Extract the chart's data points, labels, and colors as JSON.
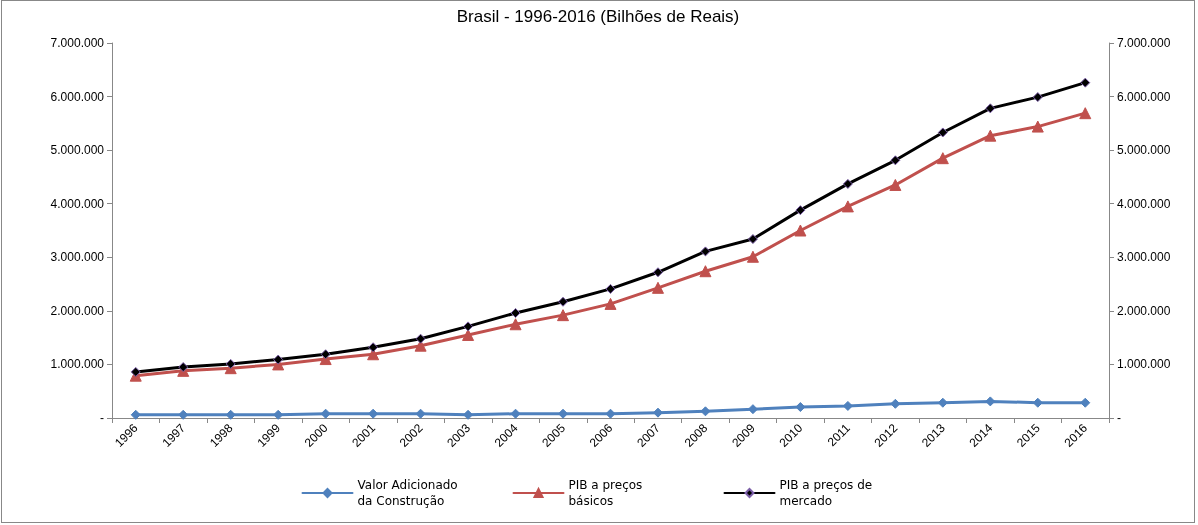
{
  "chart_data": {
    "type": "line",
    "title": "Brasil - 1996-2016 (Bilhões de Reais)",
    "categories": [
      "1996",
      "1997",
      "1998",
      "1999",
      "2000",
      "2001",
      "2002",
      "2003",
      "2004",
      "2005",
      "2006",
      "2007",
      "2008",
      "2009",
      "2010",
      "2011",
      "2012",
      "2013",
      "2014",
      "2015",
      "2016"
    ],
    "series": [
      {
        "name": "Valor Adicionado da Construção",
        "color": "#4f81bd",
        "marker": "diamond",
        "values": [
          60000,
          60000,
          60000,
          60000,
          80000,
          80000,
          80000,
          60000,
          80000,
          80000,
          80000,
          100000,
          125000,
          165000,
          205000,
          225000,
          265000,
          285000,
          310000,
          285000,
          285000
        ]
      },
      {
        "name": "PIB a preços básicos",
        "color": "#c0504d",
        "marker": "triangle",
        "values": [
          790000,
          880000,
          930000,
          1000000,
          1100000,
          1190000,
          1350000,
          1550000,
          1750000,
          1920000,
          2130000,
          2430000,
          2740000,
          3010000,
          3500000,
          3950000,
          4350000,
          4850000,
          5270000,
          5440000,
          5690000
        ]
      },
      {
        "name": "PIB a preços de mercado",
        "color": "#000000",
        "marker": "diamond",
        "values": [
          860000,
          950000,
          1010000,
          1090000,
          1190000,
          1320000,
          1480000,
          1710000,
          1960000,
          2170000,
          2410000,
          2720000,
          3110000,
          3340000,
          3880000,
          4370000,
          4810000,
          5330000,
          5780000,
          5990000,
          6260000
        ]
      }
    ],
    "ylim": [
      0,
      7000000
    ],
    "yticks": [
      {
        "value": 0,
        "label": "-"
      },
      {
        "value": 1000000,
        "label": "1.000.000"
      },
      {
        "value": 2000000,
        "label": "2.000.000"
      },
      {
        "value": 3000000,
        "label": "3.000.000"
      },
      {
        "value": 4000000,
        "label": "4.000.000"
      },
      {
        "value": 5000000,
        "label": "5.000.000"
      },
      {
        "value": 6000000,
        "label": "6.000.000"
      },
      {
        "value": 7000000,
        "label": "7.000.000"
      }
    ],
    "y2lim": [
      0,
      7000000
    ],
    "y2ticks": [
      {
        "value": 0,
        "label": "-"
      },
      {
        "value": 1000000,
        "label": "1.000.000"
      },
      {
        "value": 2000000,
        "label": "2.000.000"
      },
      {
        "value": 3000000,
        "label": "3.000.000"
      },
      {
        "value": 4000000,
        "label": "4.000.000"
      },
      {
        "value": 5000000,
        "label": "5.000.000"
      },
      {
        "value": 6000000,
        "label": "6.000.000"
      },
      {
        "value": 7000000,
        "label": "7.000.000"
      }
    ],
    "grid": false,
    "legend": "bottom",
    "line_style": "solid"
  }
}
